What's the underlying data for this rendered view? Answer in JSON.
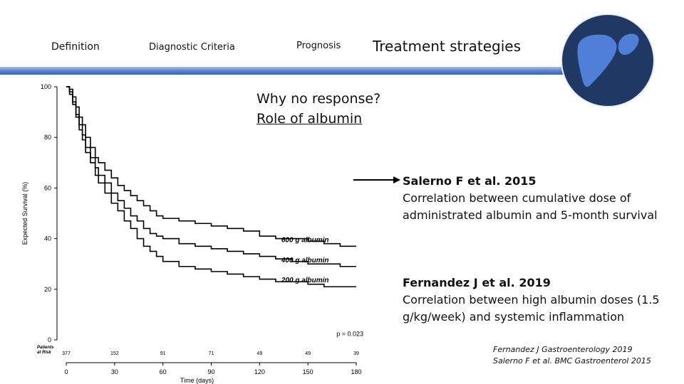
{
  "nav": {
    "items": [
      "Definition",
      "Diagnostic Criteria",
      "Prognosis",
      "Treatment strategies"
    ]
  },
  "heading": {
    "line1": "Why no response?",
    "line2": "Role of albumin"
  },
  "references": [
    {
      "title": "Salerno F et al. 2015",
      "body": "Correlation between cumulative dose of administrated albumin and  5-month survival"
    },
    {
      "title": "Fernandez J et al. 2019",
      "body": "Correlation between high albumin doses (1.5 g/kg/week) and systemic inflammation"
    }
  ],
  "citations": [
    "Fernandez J Gastroenterology 2019",
    "Salerno F et al. BMC Gastroenterol 2015"
  ],
  "colors": {
    "band": "#4a72c4",
    "logo_bg": "#1f3864",
    "liver": "#4f7fd6"
  },
  "chart_data": {
    "type": "line",
    "xlabel": "Time (days)",
    "ylabel": "Expected Survival (%)",
    "x_ticks": [
      0,
      30,
      60,
      90,
      120,
      150,
      180
    ],
    "y_ticks": [
      0,
      20,
      40,
      60,
      80,
      100
    ],
    "xlim": [
      0,
      180
    ],
    "ylim": [
      0,
      100
    ],
    "annotation": "p = 0.023",
    "at_risk_label": "Patients at Risk",
    "at_risk": [
      377,
      152,
      91,
      71,
      49,
      49,
      39
    ],
    "series": [
      {
        "name": "600 g albumin",
        "x": [
          0,
          2,
          4,
          6,
          8,
          10,
          12,
          15,
          18,
          20,
          24,
          28,
          32,
          36,
          40,
          44,
          48,
          52,
          56,
          60,
          70,
          80,
          90,
          100,
          110,
          120,
          130,
          140,
          150,
          160,
          170,
          180
        ],
        "y": [
          100,
          99,
          96,
          92,
          88,
          85,
          80,
          76,
          72,
          70,
          67,
          64,
          61,
          59,
          57,
          55,
          53,
          51,
          49,
          48,
          47,
          46,
          45,
          44,
          43,
          41,
          40,
          40,
          39,
          38,
          37,
          37
        ]
      },
      {
        "name": "400 g albumin",
        "x": [
          0,
          2,
          4,
          6,
          8,
          10,
          12,
          15,
          18,
          20,
          24,
          28,
          32,
          36,
          40,
          44,
          48,
          52,
          56,
          60,
          70,
          80,
          90,
          100,
          110,
          120,
          130,
          140,
          150,
          160,
          170,
          180
        ],
        "y": [
          100,
          98,
          94,
          89,
          85,
          81,
          76,
          72,
          68,
          65,
          62,
          58,
          55,
          52,
          49,
          47,
          44,
          42,
          41,
          40,
          38,
          37,
          36,
          35,
          34,
          33,
          32,
          31,
          30,
          30,
          29,
          29
        ]
      },
      {
        "name": "200 g albumin",
        "x": [
          0,
          2,
          4,
          6,
          8,
          10,
          12,
          15,
          18,
          20,
          24,
          28,
          32,
          36,
          40,
          44,
          48,
          52,
          56,
          60,
          70,
          80,
          90,
          100,
          110,
          120,
          130,
          140,
          150,
          160,
          170,
          180
        ],
        "y": [
          100,
          97,
          93,
          88,
          83,
          79,
          74,
          70,
          65,
          62,
          58,
          54,
          51,
          47,
          44,
          40,
          37,
          35,
          33,
          31,
          29,
          28,
          27,
          26,
          25,
          24,
          23,
          23,
          22,
          21,
          21,
          21
        ]
      }
    ]
  }
}
